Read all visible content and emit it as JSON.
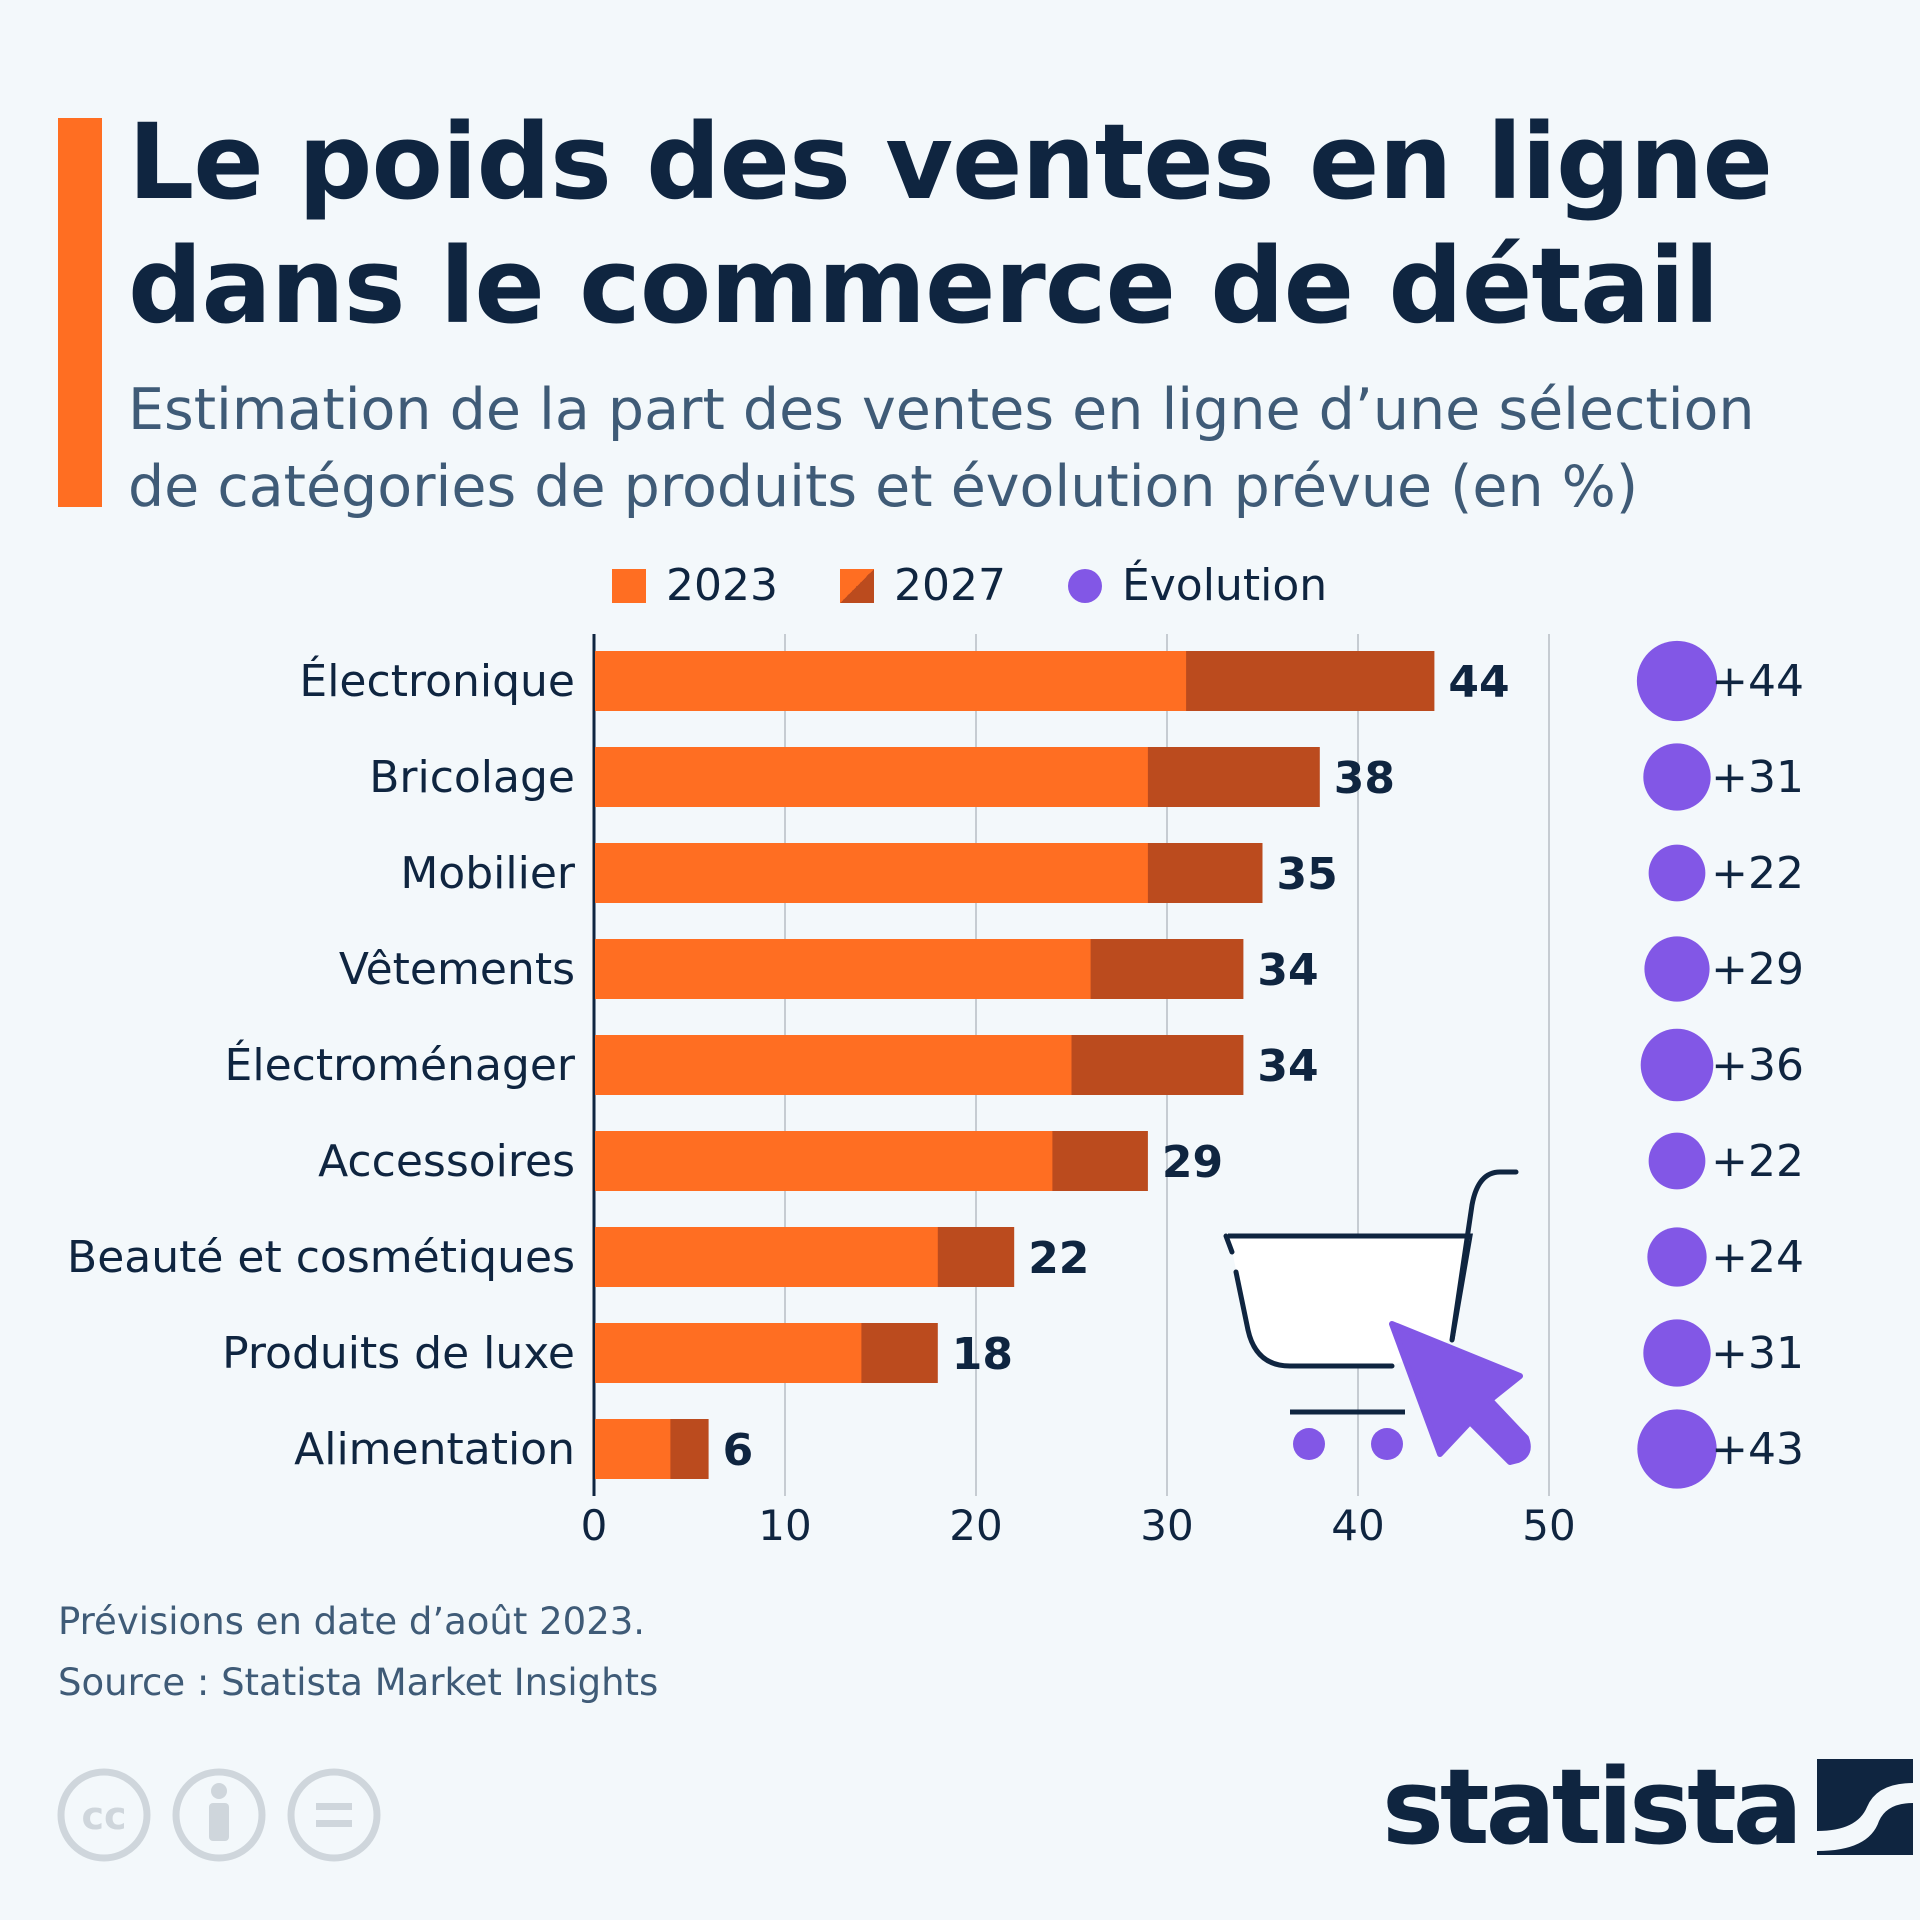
{
  "title_lines": [
    "Le poids des ventes en ligne",
    "dans le commerce de détail"
  ],
  "subtitle_lines": [
    "Estimation de la part des ventes en ligne d’une sélection",
    "de catégories de produits et évolution prévue (en %)"
  ],
  "colors": {
    "accent": "#ff6e22",
    "bar_2023": "#ff6e22",
    "bar_2027": "#bb4b1e",
    "evolution": "#8257e6",
    "text": "#0f2540"
  },
  "legend": [
    {
      "label": "2023",
      "icon": "orange-square"
    },
    {
      "label": "2027",
      "icon": "split-square"
    },
    {
      "label": "Évolution",
      "icon": "purple-dot"
    }
  ],
  "chart_data": {
    "type": "bar",
    "orientation": "horizontal",
    "categories": [
      "Électronique",
      "Bricolage",
      "Mobilier",
      "Vêtements",
      "Électroménager",
      "Accessoires",
      "Beauté et cosmétiques",
      "Produits de luxe",
      "Alimentation"
    ],
    "series": [
      {
        "name": "2023",
        "values": [
          31,
          29,
          29,
          26,
          25,
          24,
          18,
          14,
          4
        ]
      },
      {
        "name": "2027",
        "values": [
          44,
          38,
          35,
          34,
          34,
          29,
          22,
          18,
          6
        ]
      },
      {
        "name": "Évolution",
        "values": [
          44,
          31,
          22,
          29,
          36,
          22,
          24,
          31,
          43
        ]
      }
    ],
    "data_labels": [
      "44",
      "38",
      "35",
      "34",
      "34",
      "29",
      "22",
      "18",
      "6"
    ],
    "evolution_labels": [
      "+44",
      "+31",
      "+22",
      "+29",
      "+36",
      "+22",
      "+24",
      "+31",
      "+43"
    ],
    "xlim": [
      0,
      50
    ],
    "xticks": [
      "0",
      "10",
      "20",
      "30",
      "40",
      "50"
    ],
    "grid": true,
    "legend_position": "top"
  },
  "footer": {
    "note": "Prévisions en date d’août 2023.",
    "source": "Source : Statista Market Insights"
  },
  "logo": {
    "text": "statista"
  },
  "license_icons": [
    "cc-icon",
    "by-icon",
    "nd-icon"
  ]
}
